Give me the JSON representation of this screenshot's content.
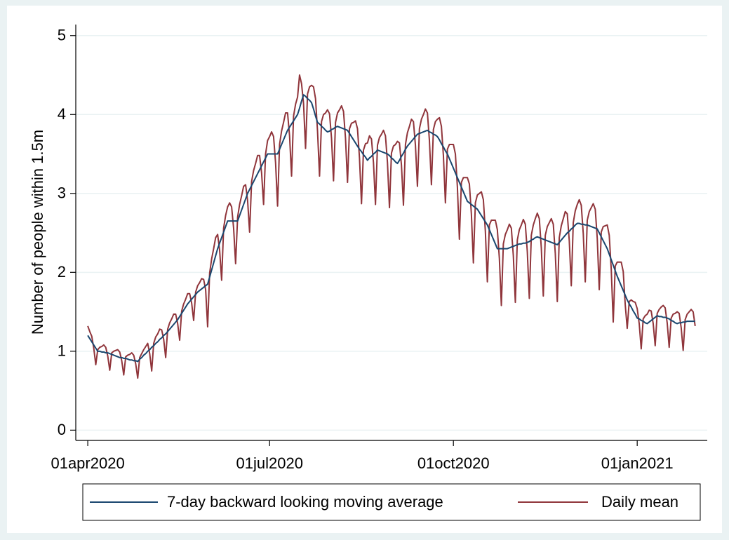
{
  "chart_data": {
    "type": "line",
    "y_label": "Number of people within 1.5m",
    "x": [
      "2020-04-01",
      "2020-04-02",
      "2020-04-03",
      "2020-04-04",
      "2020-04-05",
      "2020-04-06",
      "2020-04-07",
      "2020-04-08",
      "2020-04-09",
      "2020-04-10",
      "2020-04-11",
      "2020-04-12",
      "2020-04-13",
      "2020-04-14",
      "2020-04-15",
      "2020-04-16",
      "2020-04-17",
      "2020-04-18",
      "2020-04-19",
      "2020-04-20",
      "2020-04-21",
      "2020-04-22",
      "2020-04-23",
      "2020-04-24",
      "2020-04-25",
      "2020-04-26",
      "2020-04-27",
      "2020-04-28",
      "2020-04-29",
      "2020-04-30",
      "2020-05-01",
      "2020-05-02",
      "2020-05-03",
      "2020-05-04",
      "2020-05-05",
      "2020-05-06",
      "2020-05-07",
      "2020-05-08",
      "2020-05-09",
      "2020-05-10",
      "2020-05-11",
      "2020-05-12",
      "2020-05-13",
      "2020-05-14",
      "2020-05-15",
      "2020-05-16",
      "2020-05-17",
      "2020-05-18",
      "2020-05-19",
      "2020-05-20",
      "2020-05-21",
      "2020-05-22",
      "2020-05-23",
      "2020-05-24",
      "2020-05-25",
      "2020-05-26",
      "2020-05-27",
      "2020-05-28",
      "2020-05-29",
      "2020-05-30",
      "2020-05-31",
      "2020-06-01",
      "2020-06-02",
      "2020-06-03",
      "2020-06-04",
      "2020-06-05",
      "2020-06-06",
      "2020-06-07",
      "2020-06-08",
      "2020-06-09",
      "2020-06-10",
      "2020-06-11",
      "2020-06-12",
      "2020-06-13",
      "2020-06-14",
      "2020-06-15",
      "2020-06-16",
      "2020-06-17",
      "2020-06-18",
      "2020-06-19",
      "2020-06-20",
      "2020-06-21",
      "2020-06-22",
      "2020-06-23",
      "2020-06-24",
      "2020-06-25",
      "2020-06-26",
      "2020-06-27",
      "2020-06-28",
      "2020-06-29",
      "2020-06-30",
      "2020-07-01",
      "2020-07-02",
      "2020-07-03",
      "2020-07-04",
      "2020-07-05",
      "2020-07-06",
      "2020-07-07",
      "2020-07-08",
      "2020-07-09",
      "2020-07-10",
      "2020-07-11",
      "2020-07-12",
      "2020-07-13",
      "2020-07-14",
      "2020-07-15",
      "2020-07-16",
      "2020-07-17",
      "2020-07-18",
      "2020-07-19",
      "2020-07-20",
      "2020-07-21",
      "2020-07-22",
      "2020-07-23",
      "2020-07-24",
      "2020-07-25",
      "2020-07-26",
      "2020-07-27",
      "2020-07-28",
      "2020-07-29",
      "2020-07-30",
      "2020-07-31",
      "2020-08-01",
      "2020-08-02",
      "2020-08-03",
      "2020-08-04",
      "2020-08-05",
      "2020-08-06",
      "2020-08-07",
      "2020-08-08",
      "2020-08-09",
      "2020-08-10",
      "2020-08-11",
      "2020-08-12",
      "2020-08-13",
      "2020-08-14",
      "2020-08-15",
      "2020-08-16",
      "2020-08-17",
      "2020-08-18",
      "2020-08-19",
      "2020-08-20",
      "2020-08-21",
      "2020-08-22",
      "2020-08-23",
      "2020-08-24",
      "2020-08-25",
      "2020-08-26",
      "2020-08-27",
      "2020-08-28",
      "2020-08-29",
      "2020-08-30",
      "2020-08-31",
      "2020-09-01",
      "2020-09-02",
      "2020-09-03",
      "2020-09-04",
      "2020-09-05",
      "2020-09-06",
      "2020-09-07",
      "2020-09-08",
      "2020-09-09",
      "2020-09-10",
      "2020-09-11",
      "2020-09-12",
      "2020-09-13",
      "2020-09-14",
      "2020-09-15",
      "2020-09-16",
      "2020-09-17",
      "2020-09-18",
      "2020-09-19",
      "2020-09-20",
      "2020-09-21",
      "2020-09-22",
      "2020-09-23",
      "2020-09-24",
      "2020-09-25",
      "2020-09-26",
      "2020-09-27",
      "2020-09-28",
      "2020-09-29",
      "2020-09-30",
      "2020-10-01",
      "2020-10-02",
      "2020-10-03",
      "2020-10-04",
      "2020-10-05",
      "2020-10-06",
      "2020-10-07",
      "2020-10-08",
      "2020-10-09",
      "2020-10-10",
      "2020-10-11",
      "2020-10-12",
      "2020-10-13",
      "2020-10-14",
      "2020-10-15",
      "2020-10-16",
      "2020-10-17",
      "2020-10-18",
      "2020-10-19",
      "2020-10-20",
      "2020-10-21",
      "2020-10-22",
      "2020-10-23",
      "2020-10-24",
      "2020-10-25",
      "2020-10-26",
      "2020-10-27",
      "2020-10-28",
      "2020-10-29",
      "2020-10-30",
      "2020-10-31",
      "2020-11-01",
      "2020-11-02",
      "2020-11-03",
      "2020-11-04",
      "2020-11-05",
      "2020-11-06",
      "2020-11-07",
      "2020-11-08",
      "2020-11-09",
      "2020-11-10",
      "2020-11-11",
      "2020-11-12",
      "2020-11-13",
      "2020-11-14",
      "2020-11-15",
      "2020-11-16",
      "2020-11-17",
      "2020-11-18",
      "2020-11-19",
      "2020-11-20",
      "2020-11-21",
      "2020-11-22",
      "2020-11-23",
      "2020-11-24",
      "2020-11-25",
      "2020-11-26",
      "2020-11-27",
      "2020-11-28",
      "2020-11-29",
      "2020-11-30",
      "2020-12-01",
      "2020-12-02",
      "2020-12-03",
      "2020-12-04",
      "2020-12-05",
      "2020-12-06",
      "2020-12-07",
      "2020-12-08",
      "2020-12-09",
      "2020-12-10",
      "2020-12-11",
      "2020-12-12",
      "2020-12-13",
      "2020-12-14",
      "2020-12-15",
      "2020-12-16",
      "2020-12-17",
      "2020-12-18",
      "2020-12-19",
      "2020-12-20",
      "2020-12-21",
      "2020-12-22",
      "2020-12-23",
      "2020-12-24",
      "2020-12-25",
      "2020-12-26",
      "2020-12-27",
      "2020-12-28",
      "2020-12-29",
      "2020-12-30",
      "2020-12-31",
      "2021-01-01",
      "2021-01-02",
      "2021-01-03",
      "2021-01-04",
      "2021-01-05",
      "2021-01-06",
      "2021-01-07",
      "2021-01-08",
      "2021-01-09",
      "2021-01-10",
      "2021-01-11",
      "2021-01-12",
      "2021-01-13",
      "2021-01-14",
      "2021-01-15",
      "2021-01-16",
      "2021-01-17",
      "2021-01-18",
      "2021-01-19",
      "2021-01-20",
      "2021-01-21",
      "2021-01-22",
      "2021-01-23",
      "2021-01-24",
      "2021-01-25",
      "2021-01-26",
      "2021-01-27",
      "2021-01-28",
      "2021-01-29",
      "2021-01-30"
    ],
    "series": [
      {
        "name": "7-day backward looking moving average",
        "color": "#1a476f",
        "values": [
          1.2,
          1.16,
          1.12,
          1.08,
          1.04,
          1.0,
          1.0,
          0.99,
          0.99,
          0.98,
          0.98,
          0.97,
          0.96,
          0.95,
          0.94,
          0.93,
          0.92,
          0.92,
          0.91,
          0.91,
          0.9,
          0.89,
          0.89,
          0.88,
          0.88,
          0.87,
          0.9,
          0.92,
          0.95,
          0.97,
          1.0,
          1.02,
          1.05,
          1.07,
          1.1,
          1.12,
          1.15,
          1.17,
          1.2,
          1.22,
          1.25,
          1.28,
          1.31,
          1.34,
          1.37,
          1.4,
          1.44,
          1.48,
          1.52,
          1.56,
          1.6,
          1.63,
          1.66,
          1.69,
          1.72,
          1.75,
          1.77,
          1.79,
          1.81,
          1.83,
          1.85,
          1.94,
          2.03,
          2.12,
          2.21,
          2.3,
          2.37,
          2.44,
          2.51,
          2.58,
          2.65,
          2.65,
          2.65,
          2.65,
          2.65,
          2.65,
          2.72,
          2.79,
          2.86,
          2.93,
          3.0,
          3.05,
          3.1,
          3.15,
          3.2,
          3.25,
          3.3,
          3.35,
          3.4,
          3.45,
          3.5,
          3.5,
          3.5,
          3.5,
          3.5,
          3.5,
          3.56,
          3.62,
          3.68,
          3.74,
          3.8,
          3.84,
          3.88,
          3.92,
          3.96,
          4.0,
          4.08,
          4.17,
          4.25,
          4.23,
          4.2,
          4.18,
          4.15,
          4.07,
          3.98,
          3.9,
          3.88,
          3.85,
          3.83,
          3.8,
          3.78,
          3.79,
          3.81,
          3.82,
          3.84,
          3.85,
          3.84,
          3.83,
          3.82,
          3.81,
          3.8,
          3.76,
          3.72,
          3.68,
          3.64,
          3.6,
          3.56,
          3.53,
          3.49,
          3.46,
          3.42,
          3.45,
          3.47,
          3.5,
          3.52,
          3.55,
          3.54,
          3.53,
          3.52,
          3.51,
          3.5,
          3.48,
          3.45,
          3.43,
          3.4,
          3.38,
          3.42,
          3.47,
          3.51,
          3.56,
          3.6,
          3.63,
          3.66,
          3.69,
          3.72,
          3.75,
          3.76,
          3.77,
          3.78,
          3.79,
          3.8,
          3.78,
          3.77,
          3.75,
          3.74,
          3.72,
          3.68,
          3.63,
          3.59,
          3.54,
          3.5,
          3.44,
          3.38,
          3.32,
          3.26,
          3.2,
          3.14,
          3.08,
          3.02,
          2.96,
          2.9,
          2.88,
          2.86,
          2.84,
          2.82,
          2.8,
          2.76,
          2.72,
          2.68,
          2.64,
          2.6,
          2.54,
          2.48,
          2.42,
          2.36,
          2.3,
          2.3,
          2.3,
          2.3,
          2.3,
          2.3,
          2.31,
          2.32,
          2.33,
          2.34,
          2.35,
          2.36,
          2.36,
          2.37,
          2.37,
          2.38,
          2.39,
          2.41,
          2.42,
          2.44,
          2.45,
          2.44,
          2.43,
          2.42,
          2.41,
          2.4,
          2.39,
          2.38,
          2.37,
          2.36,
          2.35,
          2.38,
          2.41,
          2.44,
          2.47,
          2.5,
          2.52,
          2.55,
          2.57,
          2.6,
          2.62,
          2.62,
          2.61,
          2.61,
          2.6,
          2.6,
          2.59,
          2.58,
          2.57,
          2.56,
          2.55,
          2.5,
          2.45,
          2.4,
          2.35,
          2.3,
          2.23,
          2.16,
          2.09,
          2.02,
          1.95,
          1.89,
          1.83,
          1.77,
          1.71,
          1.65,
          1.6,
          1.56,
          1.51,
          1.47,
          1.42,
          1.41,
          1.39,
          1.38,
          1.36,
          1.35,
          1.37,
          1.39,
          1.41,
          1.43,
          1.45,
          1.44,
          1.44,
          1.43,
          1.43,
          1.42,
          1.41,
          1.39,
          1.38,
          1.36,
          1.35,
          1.36,
          1.36,
          1.37,
          1.37,
          1.38,
          1.38,
          1.38,
          1.38,
          1.38
        ]
      },
      {
        "name": "Daily mean",
        "color": "#90353b",
        "values": [
          1.32,
          1.25,
          1.19,
          1.04,
          0.83,
          1.02,
          1.05,
          1.06,
          1.08,
          1.05,
          0.94,
          0.76,
          0.98,
          1.0,
          1.01,
          1.02,
          0.99,
          0.88,
          0.7,
          0.93,
          0.95,
          0.96,
          0.98,
          0.95,
          0.84,
          0.66,
          0.92,
          0.97,
          1.02,
          1.06,
          1.1,
          0.97,
          0.75,
          1.1,
          1.18,
          1.22,
          1.28,
          1.27,
          1.15,
          0.92,
          1.28,
          1.36,
          1.41,
          1.47,
          1.47,
          1.35,
          1.14,
          1.51,
          1.6,
          1.66,
          1.73,
          1.73,
          1.61,
          1.39,
          1.75,
          1.83,
          1.87,
          1.92,
          1.91,
          1.78,
          1.31,
          1.99,
          2.17,
          2.3,
          2.44,
          2.48,
          2.28,
          1.9,
          2.56,
          2.72,
          2.83,
          2.88,
          2.83,
          2.56,
          2.11,
          2.7,
          2.86,
          2.97,
          3.09,
          3.11,
          2.91,
          2.51,
          3.15,
          3.29,
          3.38,
          3.48,
          3.48,
          3.26,
          2.86,
          3.5,
          3.67,
          3.72,
          3.78,
          3.72,
          3.39,
          2.84,
          3.62,
          3.79,
          3.9,
          4.02,
          4.02,
          3.73,
          3.22,
          3.98,
          4.13,
          4.22,
          4.5,
          4.39,
          4.14,
          3.57,
          4.26,
          4.35,
          4.37,
          4.35,
          4.2,
          3.79,
          3.22,
          3.91,
          4.0,
          4.02,
          4.06,
          4.01,
          3.7,
          3.16,
          3.9,
          4.02,
          4.06,
          4.11,
          4.04,
          3.7,
          3.14,
          3.82,
          3.89,
          3.9,
          3.92,
          3.82,
          3.45,
          2.87,
          3.55,
          3.63,
          3.64,
          3.73,
          3.69,
          3.39,
          2.86,
          3.61,
          3.71,
          3.75,
          3.8,
          3.73,
          3.39,
          2.82,
          3.51,
          3.6,
          3.62,
          3.66,
          3.64,
          3.36,
          2.85,
          3.62,
          3.77,
          3.85,
          3.94,
          3.91,
          3.61,
          3.09,
          3.82,
          3.94,
          4.0,
          4.07,
          4.02,
          3.67,
          3.11,
          3.81,
          3.91,
          3.94,
          3.96,
          3.85,
          3.48,
          2.88,
          3.56,
          3.62,
          3.62,
          3.62,
          3.5,
          3.08,
          2.42,
          3.14,
          3.2,
          3.2,
          3.2,
          3.12,
          2.74,
          2.12,
          2.88,
          2.98,
          3.0,
          3.02,
          2.92,
          2.52,
          1.88,
          2.6,
          2.66,
          2.66,
          2.66,
          2.54,
          2.18,
          1.58,
          2.36,
          2.48,
          2.54,
          2.61,
          2.56,
          2.21,
          1.62,
          2.41,
          2.54,
          2.6,
          2.67,
          2.61,
          2.26,
          1.67,
          2.47,
          2.6,
          2.68,
          2.75,
          2.68,
          2.31,
          1.7,
          2.47,
          2.58,
          2.63,
          2.68,
          2.61,
          2.24,
          1.63,
          2.44,
          2.59,
          2.68,
          2.77,
          2.74,
          2.4,
          1.83,
          2.63,
          2.78,
          2.86,
          2.92,
          2.85,
          2.49,
          1.88,
          2.66,
          2.77,
          2.82,
          2.87,
          2.8,
          2.43,
          1.78,
          2.51,
          2.58,
          2.59,
          2.6,
          2.47,
          2.04,
          1.37,
          2.08,
          2.13,
          2.13,
          2.13,
          2.01,
          1.59,
          1.29,
          1.63,
          1.65,
          1.63,
          1.62,
          1.54,
          1.35,
          1.03,
          1.41,
          1.45,
          1.47,
          1.52,
          1.51,
          1.35,
          1.07,
          1.48,
          1.53,
          1.56,
          1.58,
          1.55,
          1.36,
          1.05,
          1.42,
          1.47,
          1.48,
          1.5,
          1.48,
          1.3,
          1.01,
          1.4,
          1.47,
          1.5,
          1.53,
          1.5,
          1.32
        ]
      }
    ],
    "xlim": [
      "2020-03-26",
      "2021-02-04"
    ],
    "xticks": [
      {
        "value": "2020-04-01",
        "label": "01apr2020"
      },
      {
        "value": "2020-07-01",
        "label": "01jul2020"
      },
      {
        "value": "2020-10-01",
        "label": "01oct2020"
      },
      {
        "value": "2021-01-01",
        "label": "01jan2021"
      }
    ],
    "ylim": [
      -0.13,
      5.14
    ],
    "yticks": [
      0,
      1,
      2,
      3,
      4,
      5
    ],
    "grid": true,
    "legend": "bottom"
  }
}
